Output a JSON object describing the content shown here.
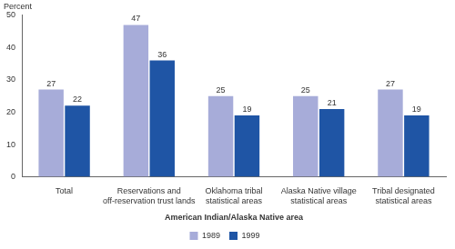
{
  "chart_data": {
    "type": "bar",
    "y_label": "Percent",
    "x_label": "American Indian/Alaska Native area",
    "categories": [
      [
        "Total"
      ],
      [
        "Reservations and",
        "off-reservation trust lands"
      ],
      [
        "Oklahoma tribal",
        "statistical areas"
      ],
      [
        "Alaska Native village",
        "statistical areas"
      ],
      [
        "Tribal designated",
        "statistical areas"
      ]
    ],
    "series": [
      {
        "name": "1989",
        "color": "#a7acd9",
        "values": [
          27,
          47,
          25,
          25,
          27
        ]
      },
      {
        "name": "1999",
        "color": "#1f55a5",
        "values": [
          22,
          36,
          19,
          21,
          19
        ]
      }
    ],
    "ylim": [
      0,
      50
    ],
    "yticks": [
      0,
      10,
      20,
      30,
      40,
      50
    ],
    "grid": false,
    "legend": "bottom",
    "data_labels": true
  }
}
